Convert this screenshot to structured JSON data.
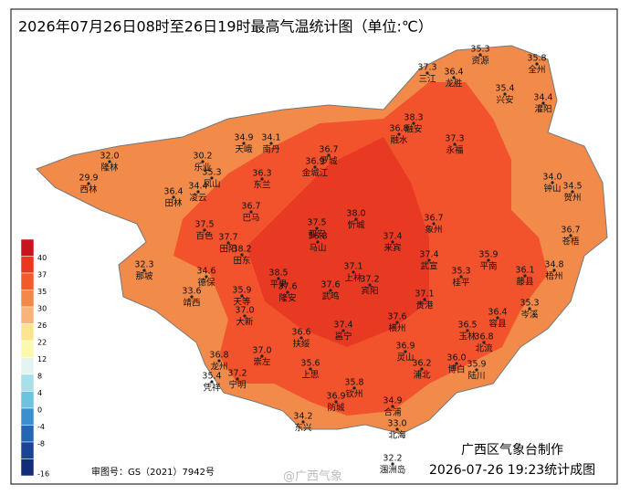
{
  "title": "2026年07月26日08时至26日19时最高气温统计图（单位:℃）",
  "producer": "广西区气象台制作",
  "made_time": "2026-07-26 19:23统计成图",
  "map_approval": "审图号：GS（2021）7942号",
  "watermark": "@广西气象",
  "legend": [
    {
      "label": "",
      "color": "#c8141e"
    },
    {
      "label": "40",
      "color": "#e8361f"
    },
    {
      "label": "37",
      "color": "#f25a2c"
    },
    {
      "label": "35",
      "color": "#f5874a"
    },
    {
      "label": "30",
      "color": "#f9b27a"
    },
    {
      "label": "26",
      "color": "#fde48f"
    },
    {
      "label": "22",
      "color": "#fdf8b0"
    },
    {
      "label": "12",
      "color": "#e3f5f0"
    },
    {
      "label": "8",
      "color": "#a8e0ea"
    },
    {
      "label": "4",
      "color": "#6cc3e0"
    },
    {
      "label": "0",
      "color": "#3a8fcc"
    },
    {
      "label": "-4",
      "color": "#2565b3"
    },
    {
      "label": "-8",
      "color": "#1a4596"
    },
    {
      "label": "-16",
      "color": "#122d78"
    }
  ],
  "stations": [
    {
      "name": "资源",
      "value": "35.3"
    },
    {
      "name": "全州",
      "value": "35.8"
    },
    {
      "name": "三江",
      "value": "37.3"
    },
    {
      "name": "龙胜",
      "value": "36.4"
    },
    {
      "name": "兴安",
      "value": "35.4"
    },
    {
      "name": "灌阳",
      "value": "34.4"
    },
    {
      "name": "天峨",
      "value": "34.9"
    },
    {
      "name": "南丹",
      "value": "34.1"
    },
    {
      "name": "融安",
      "value": "38.3"
    },
    {
      "name": "融水",
      "value": "36.8"
    },
    {
      "name": "永福",
      "value": "37.3"
    },
    {
      "name": "隆林",
      "value": "32.0"
    },
    {
      "name": "西林",
      "value": "29.9"
    },
    {
      "name": "乐业",
      "value": "30.2"
    },
    {
      "name": "罗城",
      "value": "36.7"
    },
    {
      "name": "金城江",
      "value": "36.9"
    },
    {
      "name": "凤山",
      "value": "35.3"
    },
    {
      "name": "东兰",
      "value": "36.3"
    },
    {
      "name": "凌云",
      "value": "34.4"
    },
    {
      "name": "田林",
      "value": "36.4"
    },
    {
      "name": "百色",
      "value": "37.5"
    },
    {
      "name": "巴马",
      "value": "36.7"
    },
    {
      "name": "都安",
      "value": "37.5"
    },
    {
      "name": "忻城",
      "value": "38.0"
    },
    {
      "name": "马山",
      "value": "36.8"
    },
    {
      "name": "来宾",
      "value": "37.4"
    },
    {
      "name": "象州",
      "value": "36.7"
    },
    {
      "name": "田阳",
      "value": "37.7"
    },
    {
      "name": "田东",
      "value": "38.2"
    },
    {
      "name": "钟山",
      "value": "34.0"
    },
    {
      "name": "贺州",
      "value": "34.5"
    },
    {
      "name": "苍梧",
      "value": "36.7"
    },
    {
      "name": "那坡",
      "value": "32.3"
    },
    {
      "name": "德保",
      "value": "34.6"
    },
    {
      "name": "平果",
      "value": "38.5"
    },
    {
      "name": "上林",
      "value": "37.1"
    },
    {
      "name": "宾阳",
      "value": "37.2"
    },
    {
      "name": "武宣",
      "value": "37.4"
    },
    {
      "name": "桂平",
      "value": "35.3"
    },
    {
      "name": "平南",
      "value": "35.9"
    },
    {
      "name": "藤县",
      "value": "36.1"
    },
    {
      "name": "梧州",
      "value": "34.8"
    },
    {
      "name": "靖西",
      "value": "33.6"
    },
    {
      "name": "天等",
      "value": "35.9"
    },
    {
      "name": "隆安",
      "value": "37.6"
    },
    {
      "name": "武鸣",
      "value": "37.6"
    },
    {
      "name": "贵港",
      "value": "37.1"
    },
    {
      "name": "岑溪",
      "value": "35.3"
    },
    {
      "name": "大新",
      "value": "37.0"
    },
    {
      "name": "横州",
      "value": "37.6"
    },
    {
      "name": "玉林",
      "value": "36.5"
    },
    {
      "name": "容县",
      "value": "36.4"
    },
    {
      "name": "扶绥",
      "value": "36.6"
    },
    {
      "name": "邕宁",
      "value": "37.4"
    },
    {
      "name": "灵山",
      "value": "36.9"
    },
    {
      "name": "龙州",
      "value": "36.8"
    },
    {
      "name": "崇左",
      "value": "37.0"
    },
    {
      "name": "北流",
      "value": "36.8"
    },
    {
      "name": "博白",
      "value": "36.0"
    },
    {
      "name": "陆川",
      "value": "35.9"
    },
    {
      "name": "浦北",
      "value": "36.2"
    },
    {
      "name": "凭祥",
      "value": "35.4"
    },
    {
      "name": "宁明",
      "value": "37.2"
    },
    {
      "name": "上思",
      "value": "35.6"
    },
    {
      "name": "钦州",
      "value": "35.8"
    },
    {
      "name": "防城",
      "value": "36.9"
    },
    {
      "name": "合浦",
      "value": "34.9"
    },
    {
      "name": "东兴",
      "value": "34.2"
    },
    {
      "name": "北海",
      "value": "33.0"
    },
    {
      "name": "涠洲岛",
      "value": "32.2"
    }
  ]
}
